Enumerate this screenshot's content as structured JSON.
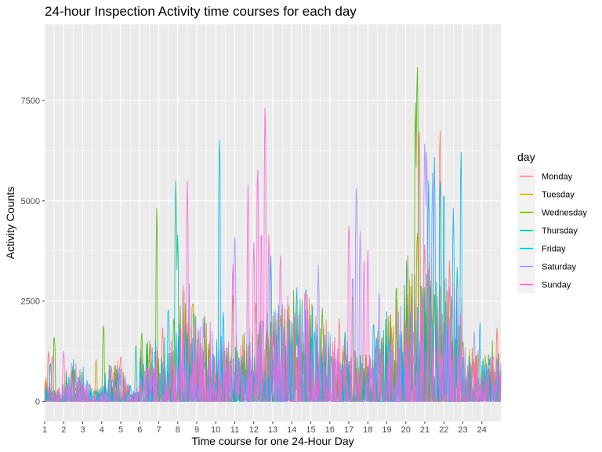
{
  "chart_data": {
    "type": "line",
    "title": "24-hour Inspection Activity time courses for each day",
    "xlabel": "Time course for one 24-Hour Day",
    "ylabel": "Activity Counts",
    "xlim": [
      1,
      25
    ],
    "ylim": [
      -500,
      9400
    ],
    "x_ticks": [
      "1",
      "2",
      "3",
      "4",
      "5",
      "6",
      "7",
      "8",
      "9",
      "10",
      "11",
      "12",
      "13",
      "14",
      "15",
      "16",
      "17",
      "18",
      "19",
      "20",
      "21",
      "22",
      "23",
      "24"
    ],
    "y_ticks": [
      0,
      2500,
      5000,
      7500
    ],
    "y_tick_labels": [
      "0",
      "2500",
      "5000",
      "7500"
    ],
    "grid": true,
    "legend": {
      "title": "day",
      "placement": "right"
    },
    "colors": {
      "panel_bg": "#ebebeb",
      "grid_major": "#ffffff",
      "legend_key_bg": "#f2f2f2"
    },
    "series": [
      {
        "name": "Monday",
        "color": "#F8766D",
        "peaks": [
          [
            1.2,
            1300
          ],
          [
            2.4,
            800
          ],
          [
            5.0,
            1200
          ],
          [
            7.2,
            1900
          ],
          [
            12.1,
            2600
          ],
          [
            16.5,
            2100
          ],
          [
            20.7,
            7350
          ],
          [
            21.0,
            4200
          ],
          [
            21.8,
            7250
          ],
          [
            22.3,
            3700
          ],
          [
            24.8,
            1900
          ]
        ]
      },
      {
        "name": "Tuesday",
        "color": "#C49A00",
        "peaks": [
          [
            3.7,
            1100
          ],
          [
            6.5,
            1000
          ],
          [
            8.8,
            2700
          ],
          [
            10.9,
            2800
          ],
          [
            13.4,
            2300
          ],
          [
            17.2,
            2900
          ],
          [
            20.1,
            3700
          ],
          [
            20.6,
            4500
          ],
          [
            23.0,
            1600
          ],
          [
            24.2,
            1000
          ]
        ]
      },
      {
        "name": "Wednesday",
        "color": "#53B400",
        "peaks": [
          [
            1.5,
            1750
          ],
          [
            4.1,
            2050
          ],
          [
            6.1,
            1800
          ],
          [
            6.9,
            4900
          ],
          [
            7.8,
            2200
          ],
          [
            15.6,
            2400
          ],
          [
            19.5,
            3100
          ],
          [
            20.5,
            7850
          ],
          [
            20.6,
            8950
          ],
          [
            20.8,
            3200
          ],
          [
            24.9,
            900
          ]
        ]
      },
      {
        "name": "Thursday",
        "color": "#00C094",
        "peaks": [
          [
            1.3,
            1000
          ],
          [
            5.8,
            1400
          ],
          [
            7.9,
            5800
          ],
          [
            8.0,
            4300
          ],
          [
            14.3,
            1700
          ],
          [
            16.8,
            1800
          ],
          [
            21.3,
            2900
          ],
          [
            22.7,
            3400
          ],
          [
            24.4,
            1000
          ]
        ]
      },
      {
        "name": "Friday",
        "color": "#00B6EB",
        "peaks": [
          [
            7.5,
            2500
          ],
          [
            10.2,
            7000
          ],
          [
            10.4,
            2300
          ],
          [
            12.9,
            3700
          ],
          [
            15.2,
            1800
          ],
          [
            18.3,
            2100
          ],
          [
            21.2,
            5700
          ],
          [
            21.5,
            6200
          ],
          [
            21.8,
            5900
          ],
          [
            22.0,
            5700
          ],
          [
            22.5,
            4900
          ],
          [
            22.9,
            6550
          ],
          [
            23.9,
            2000
          ]
        ]
      },
      {
        "name": "Saturday",
        "color": "#A58AFF",
        "peaks": [
          [
            9.4,
            2000
          ],
          [
            11.0,
            4400
          ],
          [
            12.5,
            2200
          ],
          [
            15.4,
            3400
          ],
          [
            17.2,
            3400
          ],
          [
            17.4,
            5700
          ],
          [
            17.6,
            4400
          ],
          [
            18.6,
            2900
          ],
          [
            21.0,
            6900
          ],
          [
            21.1,
            6550
          ],
          [
            21.4,
            5700
          ],
          [
            23.6,
            1800
          ]
        ]
      },
      {
        "name": "Sunday",
        "color": "#FB61D7",
        "peaks": [
          [
            1.4,
            1200
          ],
          [
            2.0,
            1300
          ],
          [
            4.5,
            900
          ],
          [
            8.5,
            5800
          ],
          [
            10.9,
            3600
          ],
          [
            11.7,
            5500
          ],
          [
            12.0,
            4100
          ],
          [
            12.2,
            6200
          ],
          [
            12.4,
            4600
          ],
          [
            12.6,
            7850
          ],
          [
            12.8,
            4300
          ],
          [
            13.4,
            3900
          ],
          [
            14.7,
            3000
          ],
          [
            17.0,
            4700
          ],
          [
            17.8,
            3500
          ],
          [
            18.0,
            3900
          ],
          [
            20.3,
            2500
          ],
          [
            22.3,
            3000
          ],
          [
            24.6,
            1200
          ]
        ]
      }
    ]
  }
}
